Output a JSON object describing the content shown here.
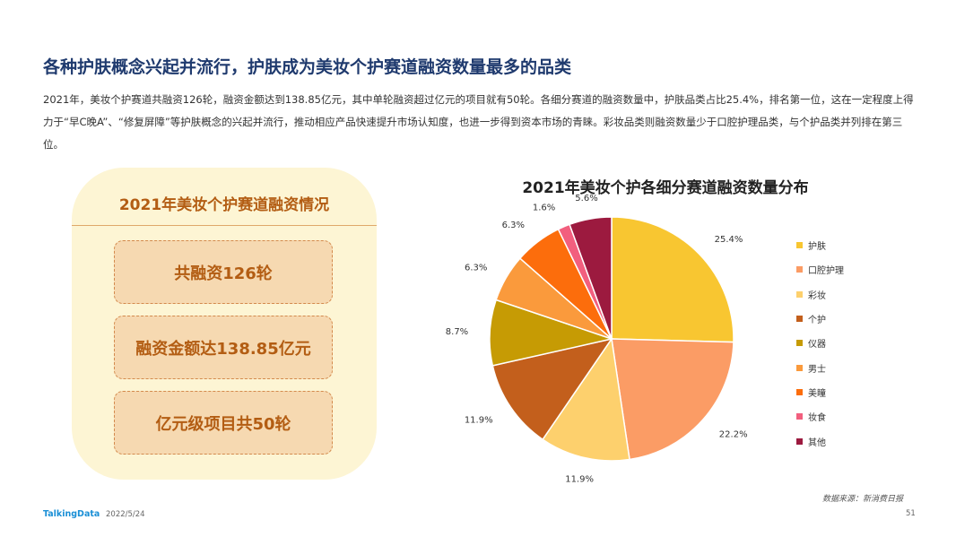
{
  "header": {
    "title": "各种护肤概念兴起并流行，护肤成为美妆个护赛道融资数量最多的品类",
    "description": "2021年，美妆个护赛道共融资126轮，融资金额达到138.85亿元，其中单轮融资超过亿元的项目就有50轮。各细分赛道的融资数量中，护肤品类占比25.4%，排名第一位，这在一定程度上得力于“早C晚A”、“修复屏障”等护肤概念的兴起并流行，推动相应产品快速提升市场认知度，也进一步得到资本市场的青睐。彩妆品类则融资数量少于口腔护理品类，与个护品类并列排在第三位。"
  },
  "summary_card": {
    "title": "2021年美妆个护赛道融资情况",
    "items": [
      "共融资126轮",
      "融资金额达138.85亿元",
      "亿元级项目共50轮"
    ]
  },
  "chart_data": {
    "type": "pie",
    "title": "2021年美妆个护各细分赛道融资数量分布",
    "categories": [
      "护肤",
      "口腔护理",
      "彩妆",
      "个护",
      "仪器",
      "男士",
      "美瞳",
      "妆食",
      "其他"
    ],
    "values": [
      25.4,
      22.2,
      11.9,
      11.9,
      8.7,
      6.3,
      6.3,
      1.6,
      5.6
    ],
    "value_labels": [
      "25.4%",
      "22.2%",
      "11.9%",
      "11.9%",
      "8.7%",
      "6.3%",
      "6.3%",
      "1.6%",
      "5.6%"
    ],
    "colors": [
      "#f8c631",
      "#fb9c65",
      "#fdd06d",
      "#c35f1c",
      "#c69b04",
      "#fa9a3c",
      "#fc6d0c",
      "#f25f7e",
      "#9c1a3f"
    ],
    "legend_position": "right"
  },
  "footer": {
    "source": "数据来源：新消费日报",
    "brand": "TalkingData",
    "date": "2022/5/24",
    "page": "51"
  }
}
